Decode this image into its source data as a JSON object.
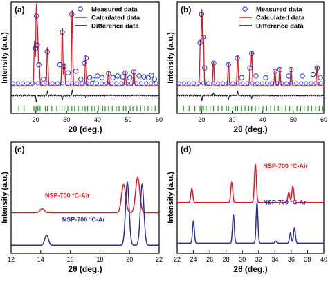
{
  "chart_data": [
    {
      "panel_label": "(a)",
      "type": "line",
      "xlabel": "2θ (deg.)",
      "ylabel": "Intensity (a.u.)",
      "xlim": [
        12,
        60
      ],
      "ylim": [
        -0.32,
        1.05
      ],
      "x_ticks": [
        "20",
        "30",
        "40",
        "50",
        "60"
      ],
      "x_tick_values": [
        20,
        30,
        40,
        50,
        60
      ],
      "legend": [
        "Measured data",
        "Calculated data",
        "Difference data"
      ],
      "legend_position": "top-right",
      "series": [
        {
          "name": "Measured data",
          "style": "open-circles",
          "color": "#2233cc",
          "x": [
            19.9,
            20.2,
            20.5,
            21.0,
            22.5,
            23.7,
            27.8,
            28.6,
            29.2,
            30.5,
            31.7,
            33.0,
            34.6,
            35.8,
            36.3,
            37.5,
            38.5,
            40.0,
            41.5,
            43.6,
            45.0,
            46.5,
            48.2,
            49.0,
            50.5,
            51.8,
            53.5,
            55.0,
            56.5,
            57.5,
            58.5
          ],
          "y": [
            0.48,
            0.88,
            0.52,
            0.28,
            0.1,
            0.44,
            0.28,
            0.68,
            0.26,
            0.18,
            0.9,
            0.2,
            0.1,
            0.3,
            0.36,
            0.12,
            0.1,
            0.14,
            0.12,
            0.17,
            0.12,
            0.14,
            0.13,
            0.18,
            0.12,
            0.19,
            0.14,
            0.13,
            0.12,
            0.15,
            0.1
          ]
        },
        {
          "name": "Calculated data",
          "style": "line",
          "color": "#e8141c",
          "peaks_x": [
            19.6,
            20.2,
            20.6,
            21.1,
            23.8,
            28.6,
            29.3,
            31.8,
            36.2,
            43.6,
            49.0,
            51.8
          ],
          "peaks_y": [
            0.55,
            0.95,
            0.6,
            0.28,
            0.48,
            0.72,
            0.28,
            0.95,
            0.38,
            0.17,
            0.18,
            0.19
          ],
          "baseline": 0.02
        },
        {
          "name": "Difference data",
          "style": "line",
          "color": "#111111",
          "offset": -0.1,
          "spikes_x": [
            20.2,
            23.8,
            28.6,
            31.8,
            36.2
          ],
          "spikes_y": [
            -0.08,
            0.05,
            -0.06,
            0.07,
            -0.03
          ]
        }
      ],
      "bragg_ticks_x": [
        14.5,
        16.2,
        19.4,
        20.1,
        20.7,
        21.4,
        23.1,
        23.8,
        25.2,
        26.8,
        28.5,
        29.2,
        30.4,
        31.7,
        32.6,
        33.8,
        35.1,
        36.0,
        36.8,
        38.2,
        39.1,
        40.3,
        41.7,
        42.5,
        43.6,
        44.8,
        46.1,
        47.0,
        48.4,
        49.2,
        50.6,
        51.5,
        52.8,
        54.0,
        55.3,
        56.4,
        57.6,
        58.7
      ],
      "bragg_color": "#1a9a1a",
      "bragg_y": -0.26
    },
    {
      "panel_label": "(b)",
      "type": "line",
      "xlabel": "2θ (deg.)",
      "ylabel": "Intensity (a.u.)",
      "xlim": [
        12,
        60
      ],
      "ylim": [
        -0.32,
        1.05
      ],
      "x_ticks": [
        "20",
        "30",
        "40",
        "50",
        "60"
      ],
      "x_tick_values": [
        20,
        30,
        40,
        50,
        60
      ],
      "legend": [
        "Measured data",
        "Calculated data",
        "Difference data"
      ],
      "legend_position": "top-right",
      "series": [
        {
          "name": "Measured data",
          "style": "open-circles",
          "color": "#2233cc",
          "x": [
            19.5,
            20.0,
            20.5,
            21.0,
            24.0,
            28.8,
            31.7,
            33.1,
            35.8,
            36.4,
            37.8,
            41.0,
            44.0,
            45.6,
            48.5,
            49.3,
            53.0,
            56.5,
            57.8,
            58.9
          ],
          "y": [
            0.55,
            0.9,
            0.62,
            0.24,
            0.3,
            0.28,
            0.36,
            0.12,
            0.24,
            0.42,
            0.14,
            0.12,
            0.2,
            0.22,
            0.14,
            0.22,
            0.14,
            0.16,
            0.24,
            0.12
          ]
        },
        {
          "name": "Calculated data",
          "style": "line",
          "color": "#e8141c",
          "peaks_x": [
            19.6,
            20.1,
            20.6,
            23.9,
            28.8,
            31.8,
            35.9,
            36.4,
            44.0,
            45.6,
            49.3,
            57.8
          ],
          "peaks_y": [
            0.55,
            0.92,
            0.6,
            0.3,
            0.28,
            0.38,
            0.24,
            0.42,
            0.2,
            0.22,
            0.22,
            0.24
          ],
          "baseline": 0.02
        },
        {
          "name": "Difference data",
          "style": "line",
          "color": "#111111",
          "offset": -0.1,
          "spikes_x": [
            20.1,
            23.9,
            28.8,
            31.8,
            36.4
          ],
          "spikes_y": [
            -0.06,
            0.03,
            -0.04,
            0.05,
            -0.03
          ]
        }
      ],
      "bragg_ticks_x": [
        14.1,
        15.9,
        17.8,
        19.5,
        20.1,
        20.6,
        21.5,
        22.8,
        23.9,
        25.4,
        26.7,
        28.1,
        28.8,
        30.2,
        31.1,
        31.8,
        33.0,
        34.2,
        35.4,
        35.9,
        36.4,
        37.6,
        38.8,
        40.1,
        41.3,
        42.6,
        43.9,
        45.1,
        46.3,
        47.5,
        48.8,
        49.9,
        51.2,
        52.4,
        53.6,
        54.8,
        56.0,
        57.3,
        58.5,
        59.6
      ],
      "bragg_color": "#1a9a1a",
      "bragg_y": -0.26
    },
    {
      "panel_label": "(c)",
      "type": "line",
      "xlabel": "2θ (deg.)",
      "ylabel": "Intensity (a.u.)",
      "xlim": [
        12,
        22
      ],
      "ylim": [
        0,
        1.1
      ],
      "x_ticks": [
        "12",
        "14",
        "16",
        "18",
        "20",
        "22"
      ],
      "x_tick_values": [
        12,
        14,
        16,
        18,
        20,
        22
      ],
      "series": [
        {
          "name": "NSP-700 °C-Air",
          "color": "#e8141c",
          "offset": 0.4,
          "peaks_x": [
            14.1,
            19.6,
            20.55
          ],
          "peaks_y": [
            0.04,
            0.28,
            0.35
          ],
          "width": 0.14,
          "label_x": 15.8,
          "label_y": 0.55
        },
        {
          "name": "NSP-700 °C-Ar",
          "color": "#2b2ea0",
          "offset": 0.08,
          "peaks_x": [
            14.4,
            19.85,
            20.85
          ],
          "peaks_y": [
            0.1,
            0.62,
            0.6
          ],
          "width": 0.12,
          "label_x": 16.9,
          "label_y": 0.31
        }
      ]
    },
    {
      "panel_label": "(d)",
      "type": "line",
      "xlabel": "2θ (deg.)",
      "ylabel": "Intensity (a.u.)",
      "xlim": [
        22,
        40
      ],
      "ylim": [
        0,
        1.1
      ],
      "x_ticks": [
        "22",
        "24",
        "26",
        "28",
        "30",
        "32",
        "34",
        "36",
        "38",
        "40"
      ],
      "x_tick_values": [
        22,
        24,
        26,
        28,
        30,
        32,
        34,
        36,
        38,
        40
      ],
      "series": [
        {
          "name": "NSP-700 °C-Air",
          "color": "#e8141c",
          "offset": 0.5,
          "peaks_x": [
            23.8,
            28.7,
            31.6,
            35.7,
            36.2
          ],
          "peaks_y": [
            0.14,
            0.2,
            0.38,
            0.1,
            0.16
          ],
          "width": 0.12,
          "label_x": 35.3,
          "label_y": 0.84
        },
        {
          "name": "NSP-700 °C-Ar",
          "color": "#2b2ea0",
          "offset": 0.1,
          "peaks_x": [
            24.0,
            28.9,
            31.8,
            34.1,
            35.9,
            36.4
          ],
          "peaks_y": [
            0.22,
            0.28,
            0.4,
            0.02,
            0.1,
            0.15
          ],
          "width": 0.11,
          "label_x": 35.2,
          "label_y": 0.48
        }
      ]
    }
  ]
}
